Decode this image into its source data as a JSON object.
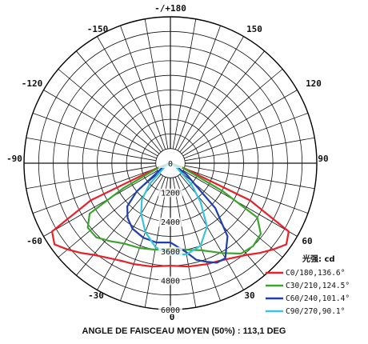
{
  "chart_data": {
    "type": "polar",
    "angle_labels": [
      "-/+180",
      "-150",
      "150",
      "-120",
      "120",
      "-90",
      "90",
      "-60",
      "60",
      "-30",
      "30",
      "0"
    ],
    "radial_labels": [
      "0",
      "1200",
      "2400",
      "3600",
      "4800",
      "6000"
    ],
    "radial_max": 6000,
    "legend_title": "光强: cd",
    "series": [
      {
        "name": "C0/180,136.6°",
        "color": "#e8202a",
        "points": [
          [
            -70,
            600
          ],
          [
            -65,
            3600
          ],
          [
            -60,
            5600
          ],
          [
            -55,
            5800
          ],
          [
            -50,
            5500
          ],
          [
            -45,
            5200
          ],
          [
            -40,
            4900
          ],
          [
            -35,
            4700
          ],
          [
            -30,
            4550
          ],
          [
            -25,
            4450
          ],
          [
            -20,
            4400
          ],
          [
            -10,
            4300
          ],
          [
            0,
            4200
          ],
          [
            10,
            4300
          ],
          [
            20,
            4400
          ],
          [
            25,
            4450
          ],
          [
            30,
            4550
          ],
          [
            35,
            4700
          ],
          [
            40,
            4900
          ],
          [
            45,
            5200
          ],
          [
            50,
            5500
          ],
          [
            55,
            5800
          ],
          [
            60,
            5600
          ],
          [
            65,
            3600
          ],
          [
            70,
            600
          ]
        ]
      },
      {
        "name": "C30/210,124.5°",
        "color": "#3aa52d",
        "points": [
          [
            -70,
            500
          ],
          [
            -62,
            2200
          ],
          [
            -58,
            3900
          ],
          [
            -52,
            4300
          ],
          [
            -45,
            4300
          ],
          [
            -38,
            4050
          ],
          [
            -30,
            3800
          ],
          [
            -20,
            3700
          ],
          [
            -10,
            3600
          ],
          [
            0,
            3500
          ],
          [
            10,
            3600
          ],
          [
            20,
            3800
          ],
          [
            30,
            4250
          ],
          [
            38,
            4700
          ],
          [
            45,
            4800
          ],
          [
            52,
            4700
          ],
          [
            58,
            4200
          ],
          [
            62,
            2400
          ],
          [
            70,
            500
          ]
        ]
      },
      {
        "name": "C60/240,101.4°",
        "color": "#1f3fb0",
        "points": [
          [
            -60,
            400
          ],
          [
            -50,
            1800
          ],
          [
            -45,
            2500
          ],
          [
            -38,
            2850
          ],
          [
            -30,
            3100
          ],
          [
            -20,
            3250
          ],
          [
            -10,
            3300
          ],
          [
            0,
            3250
          ],
          [
            10,
            3700
          ],
          [
            15,
            4100
          ],
          [
            20,
            4300
          ],
          [
            25,
            4500
          ],
          [
            30,
            4500
          ],
          [
            38,
            3800
          ],
          [
            45,
            2600
          ],
          [
            55,
            800
          ],
          [
            60,
            300
          ]
        ]
      },
      {
        "name": "C90/270,90.1°",
        "color": "#38c4dc",
        "points": [
          [
            -55,
            300
          ],
          [
            -45,
            1200
          ],
          [
            -38,
            1900
          ],
          [
            -30,
            2400
          ],
          [
            -20,
            3000
          ],
          [
            -10,
            3500
          ],
          [
            0,
            3700
          ],
          [
            10,
            3800
          ],
          [
            20,
            3600
          ],
          [
            30,
            3000
          ],
          [
            38,
            2000
          ],
          [
            45,
            1200
          ],
          [
            55,
            300
          ]
        ]
      }
    ]
  },
  "caption": "ANGLE DE FAISCEAU MOYEN (50%) : 113,1 DEG"
}
